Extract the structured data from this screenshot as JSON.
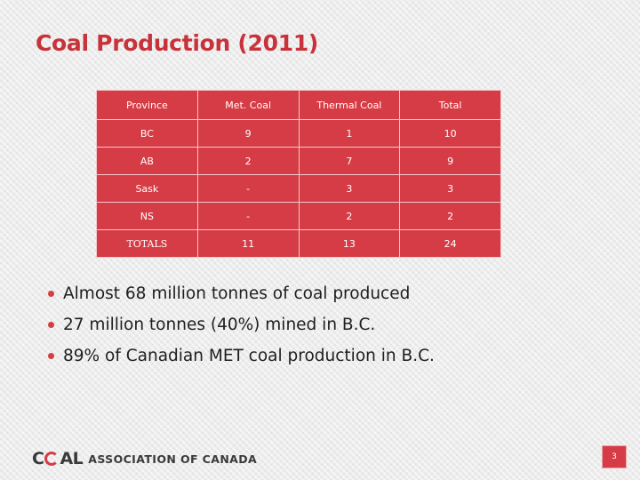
{
  "slide": {
    "title": "Coal Production (2011)",
    "page_number": "3"
  },
  "table": {
    "headers": [
      "Province",
      "Met. Coal",
      "Thermal Coal",
      "Total"
    ],
    "rows": [
      [
        "BC",
        "9",
        "1",
        "10"
      ],
      [
        "AB",
        "2",
        "7",
        "9"
      ],
      [
        "Sask",
        "-",
        "3",
        "3"
      ],
      [
        "NS",
        "-",
        "2",
        "2"
      ],
      [
        "TOTALS",
        "11",
        "13",
        "24"
      ]
    ]
  },
  "bullets": [
    "Almost 68 million tonnes of coal produced",
    "27 million tonnes (40%) mined in B.C.",
    "89% of Canadian MET coal production in B.C."
  ],
  "footer": {
    "logo_mark": "COAL",
    "logo_text": "ASSOCIATION OF CANADA"
  },
  "colors": {
    "title": "#c8323a",
    "table_fill": "#d63c45",
    "bullet_dot": "#d63c45"
  }
}
